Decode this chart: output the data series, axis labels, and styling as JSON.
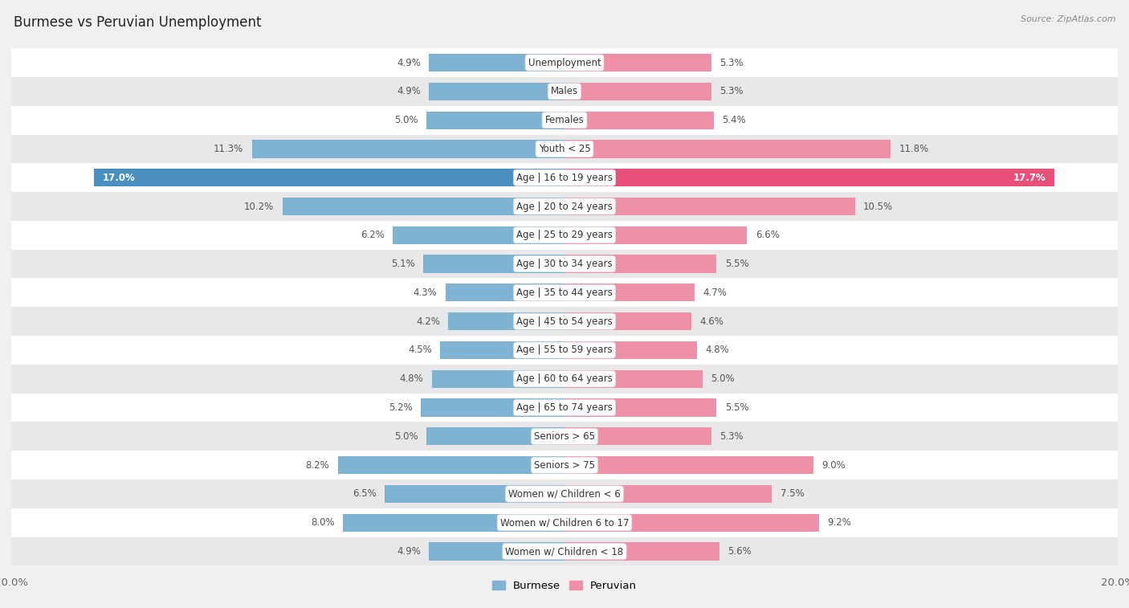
{
  "title": "Burmese vs Peruvian Unemployment",
  "source": "Source: ZipAtlas.com",
  "categories": [
    "Unemployment",
    "Males",
    "Females",
    "Youth < 25",
    "Age | 16 to 19 years",
    "Age | 20 to 24 years",
    "Age | 25 to 29 years",
    "Age | 30 to 34 years",
    "Age | 35 to 44 years",
    "Age | 45 to 54 years",
    "Age | 55 to 59 years",
    "Age | 60 to 64 years",
    "Age | 65 to 74 years",
    "Seniors > 65",
    "Seniors > 75",
    "Women w/ Children < 6",
    "Women w/ Children 6 to 17",
    "Women w/ Children < 18"
  ],
  "burmese": [
    4.9,
    4.9,
    5.0,
    11.3,
    17.0,
    10.2,
    6.2,
    5.1,
    4.3,
    4.2,
    4.5,
    4.8,
    5.2,
    5.0,
    8.2,
    6.5,
    8.0,
    4.9
  ],
  "peruvian": [
    5.3,
    5.3,
    5.4,
    11.8,
    17.7,
    10.5,
    6.6,
    5.5,
    4.7,
    4.6,
    4.8,
    5.0,
    5.5,
    5.3,
    9.0,
    7.5,
    9.2,
    5.6
  ],
  "burmese_color": "#7fb3d3",
  "peruvian_color": "#f090a8",
  "burmese_highlight_color": "#4a8fc0",
  "peruvian_highlight_color": "#e8507a",
  "highlight_row": 4,
  "axis_max": 20.0,
  "bar_height": 0.62,
  "bg_color": "#f0f0f0",
  "row_bg_white": "#ffffff",
  "row_bg_gray": "#e8e8e8",
  "title_fontsize": 12,
  "label_fontsize": 8.5,
  "value_fontsize": 8.5
}
